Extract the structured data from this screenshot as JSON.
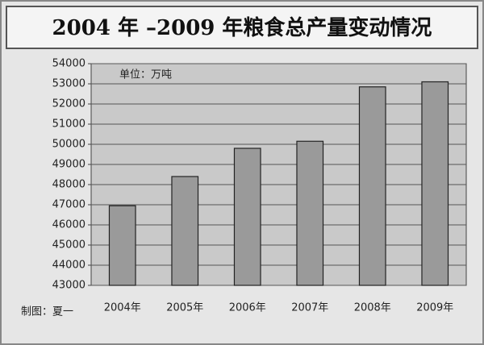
{
  "chart_data": {
    "type": "bar",
    "title": "2004 年 –2009 年粮食总产量变动情况",
    "unit_note": "单位：万吨",
    "credit": "制图：夏一",
    "categories": [
      "2004年",
      "2005年",
      "2006年",
      "2007年",
      "2008年",
      "2009年"
    ],
    "values": [
      46950,
      48400,
      49800,
      50150,
      52850,
      53100
    ],
    "color": "#9a9a9a",
    "ylim": [
      43000,
      54000
    ],
    "yticks": [
      43000,
      44000,
      45000,
      46000,
      47000,
      48000,
      49000,
      50000,
      51000,
      52000,
      53000,
      54000
    ],
    "grid": true
  }
}
